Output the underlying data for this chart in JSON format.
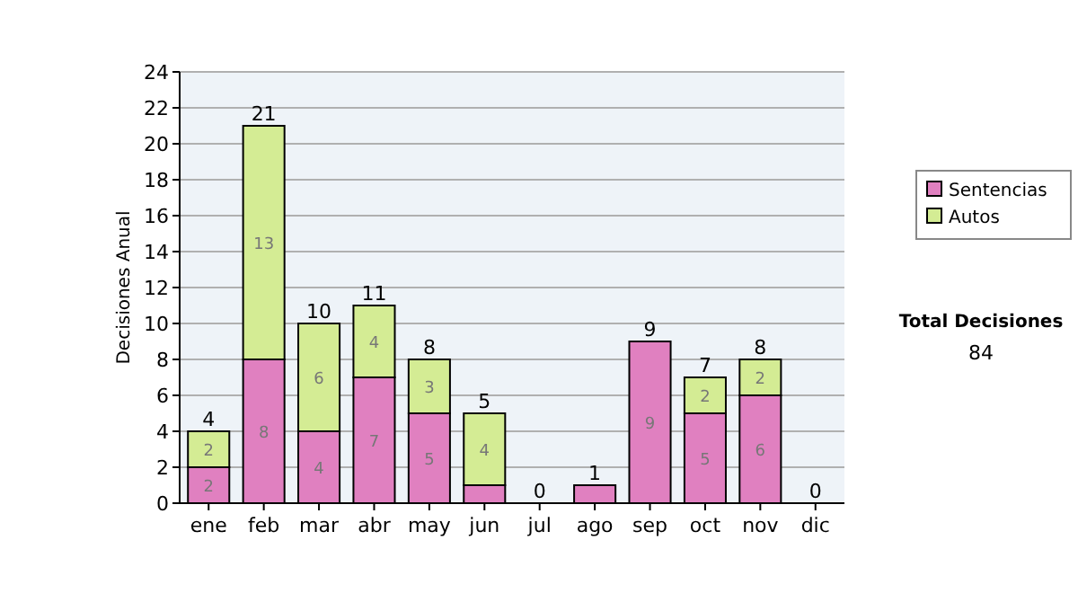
{
  "chart_data": {
    "type": "bar",
    "stacked": true,
    "ylabel": "Decisiones Anual",
    "categories": [
      "ene",
      "feb",
      "mar",
      "abr",
      "may",
      "jun",
      "jul",
      "ago",
      "sep",
      "oct",
      "nov",
      "dic"
    ],
    "series": [
      {
        "name": "Sentencias",
        "color": "#e080c0",
        "values": [
          2,
          8,
          4,
          7,
          5,
          1,
          0,
          1,
          9,
          5,
          6,
          0
        ],
        "value_labels": [
          "2",
          "8",
          "4",
          "7",
          "5",
          null,
          null,
          null,
          "9",
          "5",
          "6",
          null
        ]
      },
      {
        "name": "Autos",
        "color": "#d4ec94",
        "values": [
          2,
          13,
          6,
          4,
          3,
          4,
          0,
          0,
          0,
          2,
          2,
          0
        ],
        "value_labels": [
          "2",
          "13",
          "6",
          "4",
          "3",
          "4",
          null,
          null,
          null,
          "2",
          "2",
          null
        ]
      }
    ],
    "totals": [
      "4",
      "21",
      "10",
      "11",
      "8",
      "5",
      "0",
      "1",
      "9",
      "7",
      "8",
      "0"
    ],
    "ylim": [
      0,
      24
    ],
    "yticks": [
      0,
      2,
      4,
      6,
      8,
      10,
      12,
      14,
      16,
      18,
      20,
      22,
      24
    ],
    "grid": "y",
    "legend": "right",
    "annotations": [
      "Total Decisiones",
      "84"
    ]
  }
}
